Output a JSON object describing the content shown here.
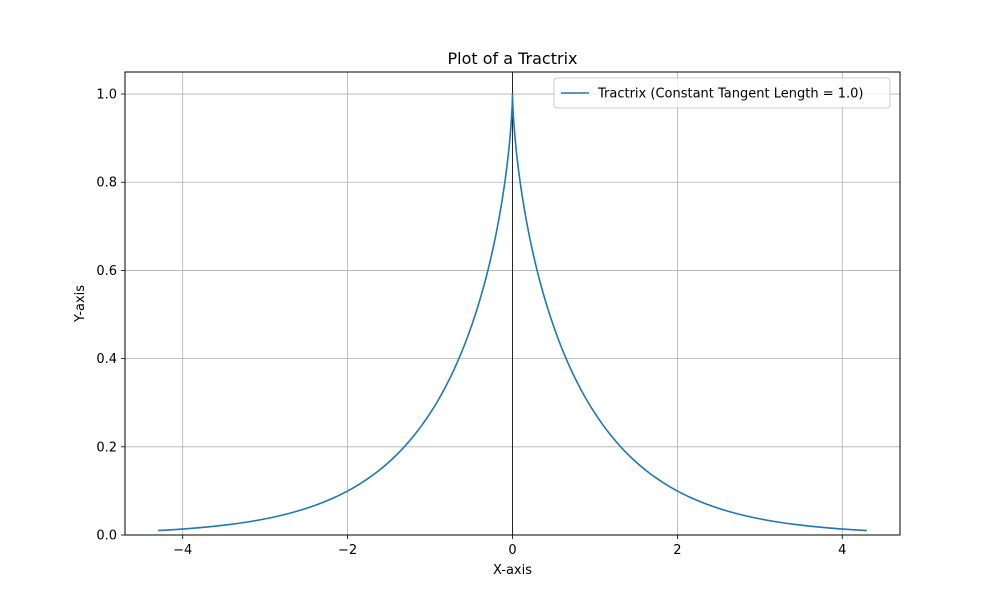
{
  "chart_data": {
    "type": "line",
    "title": "Plot of a Tractrix",
    "xlabel": "X-axis",
    "ylabel": "Y-axis",
    "xlim": [
      -4.7,
      4.7
    ],
    "ylim": [
      0.0,
      1.05
    ],
    "xticks": [
      -4,
      -2,
      0,
      2,
      4
    ],
    "xtick_labels": [
      "−4",
      "−2",
      "0",
      "2",
      "4"
    ],
    "yticks": [
      0.0,
      0.2,
      0.4,
      0.6,
      0.8,
      1.0
    ],
    "ytick_labels": [
      "0.0",
      "0.2",
      "0.4",
      "0.6",
      "0.8",
      "1.0"
    ],
    "grid": true,
    "legend_position": "top-right",
    "series": [
      {
        "name": "Tractrix (Constant Tangent Length = 1.0)",
        "color": "#1f77b4",
        "a": 1.0,
        "y_range": [
          0.01,
          1.0
        ],
        "points": [
          {
            "x": -4.3,
            "y": 0.01
          },
          {
            "x": -2.0,
            "y": 0.1
          },
          {
            "x": -0.9,
            "y": 0.3
          },
          {
            "x": 0.0,
            "y": 1.0
          },
          {
            "x": 0.9,
            "y": 0.3
          },
          {
            "x": 2.0,
            "y": 0.1
          },
          {
            "x": 4.3,
            "y": 0.01
          }
        ]
      }
    ],
    "vertical_line_x": 0
  }
}
